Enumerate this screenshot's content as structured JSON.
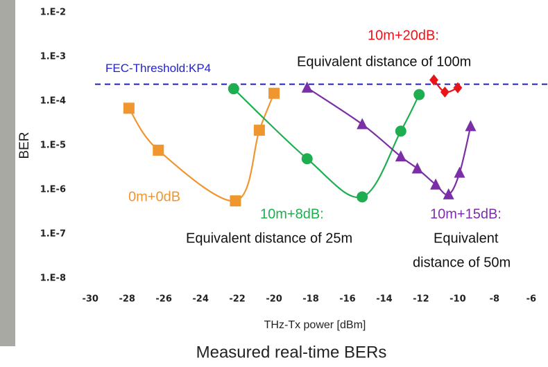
{
  "chart_data": {
    "type": "line",
    "x_label": "THz-Tx power [dBm]",
    "y_label": "BER",
    "caption": "Measured real-time BERs",
    "log_y": true,
    "xlim": [
      -30.5,
      -5.2
    ],
    "ylim": [
      1e-08,
      0.01
    ],
    "xticks": [
      -30,
      -28,
      -26,
      -24,
      -22,
      -20,
      -18,
      -16,
      -14,
      -12,
      -10,
      -8,
      -6
    ],
    "yticks": [
      {
        "value": 1e-08,
        "label": "1.E-8"
      },
      {
        "value": 1e-07,
        "label": "1.E-7"
      },
      {
        "value": 1e-06,
        "label": "1.E-6"
      },
      {
        "value": 1e-05,
        "label": "1.E-5"
      },
      {
        "value": 0.0001,
        "label": "1.E-4"
      },
      {
        "value": 0.001,
        "label": "1.E-3"
      },
      {
        "value": 0.01,
        "label": "1.E-2"
      }
    ],
    "threshold": {
      "value": 0.00024,
      "label": "FEC-Threshold:KP4",
      "color": "#1f1fd6"
    },
    "series": [
      {
        "name": "0m+0dB",
        "color": "#f0962f",
        "marker": "square",
        "x": [
          -27.9,
          -26.3,
          -22.1,
          -20.8,
          -20.0
        ],
        "values": [
          6.9e-05,
          7.8e-06,
          5.6e-07,
          2.2e-05,
          0.00015
        ]
      },
      {
        "name": "10m+8dB:",
        "color": "#1fae4f",
        "marker": "circle",
        "x": [
          -22.2,
          -18.2,
          -15.2,
          -13.1,
          -12.1
        ],
        "values": [
          0.00019,
          5e-06,
          6.9e-07,
          2.1e-05,
          0.00014
        ]
      },
      {
        "name": "10m+15dB:",
        "color": "#7b2fa6",
        "marker": "triangle",
        "x": [
          -18.2,
          -15.2,
          -13.1,
          -12.2,
          -11.2,
          -10.5,
          -9.9,
          -9.3
        ],
        "values": [
          0.0002,
          3e-05,
          5.6e-06,
          3e-06,
          1.3e-06,
          7.8e-07,
          2.4e-06,
          2.7e-05
        ]
      },
      {
        "name": "10m+20dB:",
        "color": "#e8141a",
        "marker": "diamond",
        "x": [
          -11.3,
          -10.7,
          -10.0
        ],
        "values": [
          0.0003,
          0.00016,
          0.0002
        ]
      }
    ],
    "annotations": [
      {
        "text": "Equivalent distance of 100m",
        "color": "#111111"
      },
      {
        "text": "Equivalent distance of 25m",
        "color": "#111111"
      },
      {
        "text": "Equivalent",
        "color": "#111111"
      },
      {
        "text": "distance of 50m",
        "color": "#111111"
      }
    ]
  }
}
